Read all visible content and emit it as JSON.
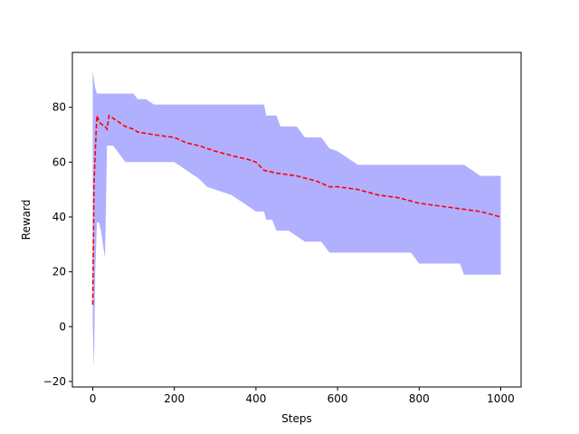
{
  "chart_data": {
    "type": "line",
    "title": "",
    "xlabel": "Steps",
    "ylabel": "Reward",
    "xlim": [
      -50,
      1050
    ],
    "ylim": [
      -22,
      100
    ],
    "x_ticks": [
      0,
      200,
      400,
      600,
      800,
      1000
    ],
    "y_ticks": [
      -20,
      0,
      20,
      40,
      60,
      80
    ],
    "grid": false,
    "legend": "none",
    "colors": {
      "mean_line": "#ff0000",
      "band_fill": "#b0b0ff"
    },
    "series": [
      {
        "kind": "mean",
        "style": "dashed",
        "x": [
          0,
          3,
          6,
          10,
          15,
          20,
          30,
          35,
          40,
          50,
          60,
          80,
          100,
          110,
          150,
          200,
          230,
          260,
          300,
          350,
          380,
          400,
          420,
          450,
          500,
          550,
          580,
          600,
          650,
          700,
          750,
          800,
          850,
          900,
          950,
          1000
        ],
        "y": [
          8,
          52,
          64,
          77,
          75,
          74,
          73,
          72,
          77,
          76,
          75,
          73,
          72,
          71,
          70,
          69,
          67,
          66,
          64,
          62,
          61,
          60,
          57,
          56,
          55,
          53,
          51,
          51,
          50,
          48,
          47,
          45,
          44,
          43,
          42,
          40
        ]
      },
      {
        "kind": "band",
        "x": [
          0,
          3,
          6,
          10,
          15,
          20,
          25,
          30,
          35,
          40,
          50,
          80,
          100,
          110,
          130,
          150,
          200,
          220,
          240,
          260,
          280,
          300,
          340,
          360,
          400,
          420,
          425,
          430,
          440,
          450,
          460,
          480,
          500,
          520,
          560,
          580,
          600,
          650,
          700,
          750,
          780,
          800,
          850,
          900,
          910,
          950,
          1000
        ],
        "upper": [
          93,
          90,
          87,
          85,
          85,
          85,
          85,
          85,
          85,
          85,
          85,
          85,
          85,
          83,
          83,
          81,
          81,
          81,
          81,
          81,
          81,
          81,
          81,
          81,
          81,
          81,
          77,
          77,
          77,
          77,
          73,
          73,
          73,
          69,
          69,
          65,
          64,
          59,
          59,
          59,
          59,
          59,
          59,
          59,
          59,
          55,
          55
        ],
        "lower": [
          0,
          -15,
          20,
          38,
          38,
          35,
          30,
          25,
          66,
          66,
          66,
          60,
          60,
          60,
          60,
          60,
          60,
          58,
          56,
          54,
          51,
          50,
          48,
          46,
          42,
          42,
          39,
          39,
          39,
          35,
          35,
          35,
          33,
          31,
          31,
          27,
          27,
          27,
          27,
          27,
          27,
          23,
          23,
          23,
          19,
          19,
          19
        ]
      }
    ]
  }
}
